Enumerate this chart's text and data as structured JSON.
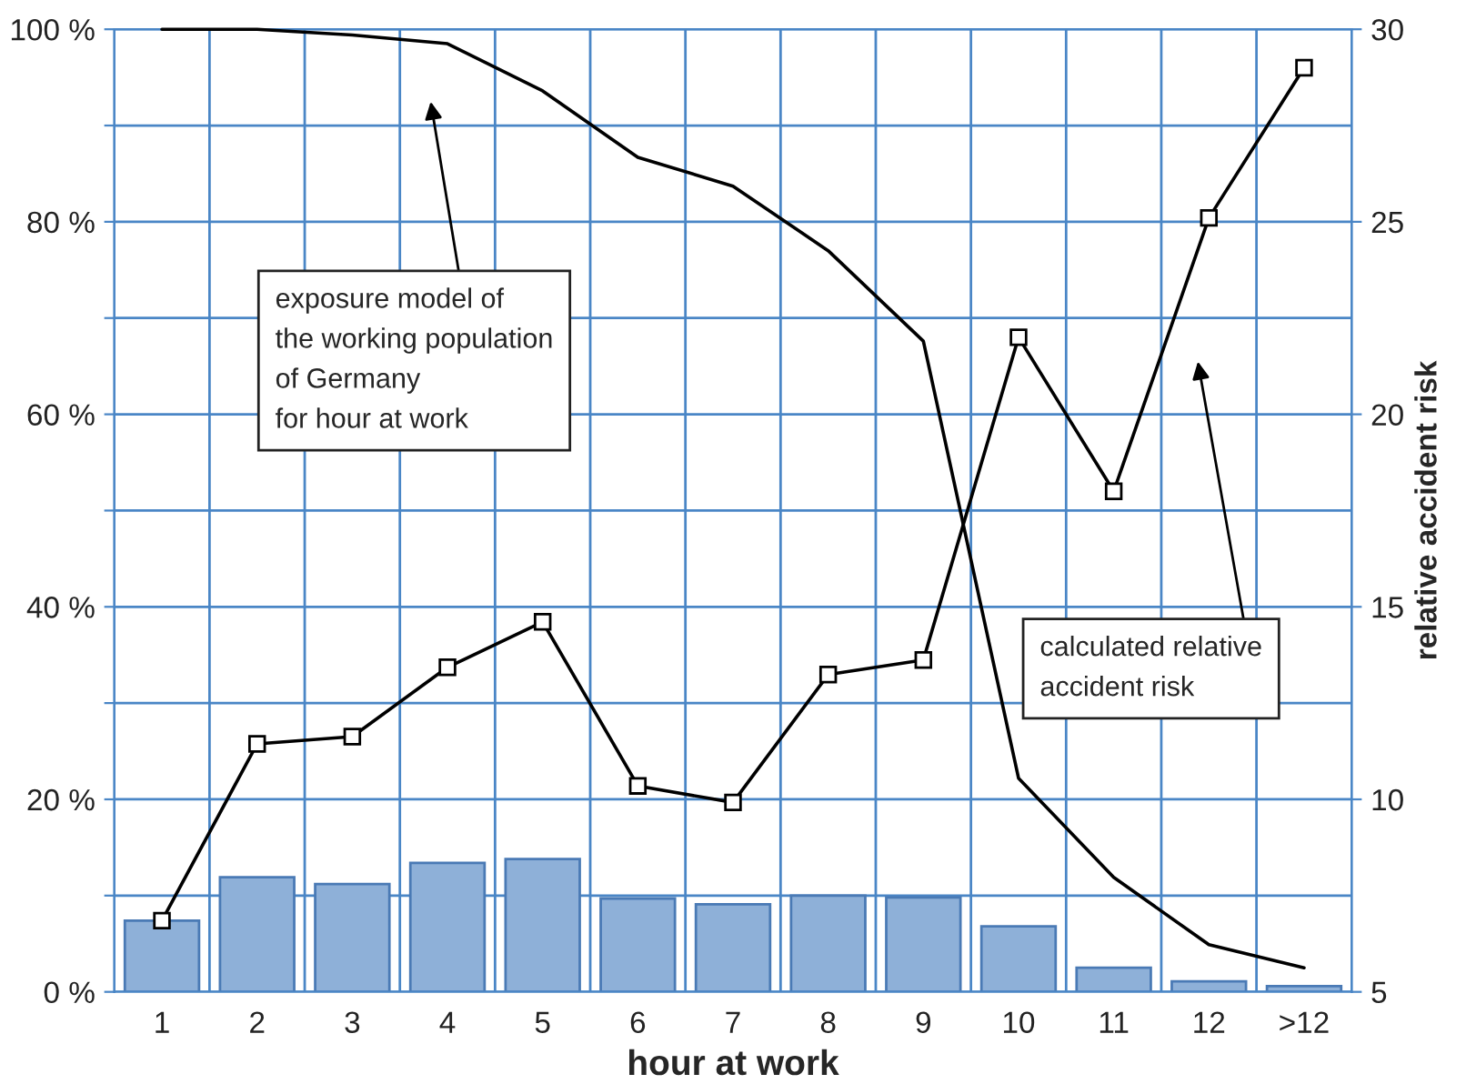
{
  "chart_data": {
    "type": "bar",
    "xlabel": "hour at work",
    "y2label": "relative accident risk",
    "categories": [
      "1",
      "2",
      "3",
      "4",
      "5",
      "6",
      "7",
      "8",
      "9",
      "10",
      "11",
      "12",
      ">12"
    ],
    "series": [
      {
        "color": "#8eb0d8",
        "values": [
          7.4,
          11.9,
          11.2,
          13.4,
          13.8,
          9.7,
          9.1,
          10.0,
          9.8,
          6.8,
          2.5,
          1.1,
          0.6
        ]
      },
      {
        "type": "line",
        "color": "#000000",
        "marker": "none",
        "values": [
          100,
          100,
          99.4,
          98.5,
          93.6,
          86.7,
          83.7,
          77,
          67.6,
          22.2,
          11.9,
          4.9,
          2.5
        ]
      },
      {
        "type": "line",
        "color": "#000000",
        "marker": "square",
        "axis": "y2",
        "values": [
          6.85,
          11.44,
          11.63,
          13.43,
          14.61,
          10.35,
          9.92,
          13.24,
          13.62,
          22.0,
          18.0,
          25.1,
          29.0
        ]
      }
    ],
    "ylim": [
      0,
      100
    ],
    "yticks": [
      {
        "value": 0,
        "label": "0 %"
      },
      {
        "value": 10,
        "label": null
      },
      {
        "value": 20,
        "label": "20 %"
      },
      {
        "value": 30,
        "label": null
      },
      {
        "value": 40,
        "label": "40 %"
      },
      {
        "value": 50,
        "label": null
      },
      {
        "value": 60,
        "label": "60 %"
      },
      {
        "value": 70,
        "label": null
      },
      {
        "value": 80,
        "label": "80 %"
      },
      {
        "value": 90,
        "label": null
      },
      {
        "value": 100,
        "label": "100 %"
      }
    ],
    "y2lim": [
      5,
      30
    ],
    "y2ticks": [
      5,
      10,
      15,
      20,
      25,
      30
    ],
    "grid": true,
    "legend": false,
    "annotations": [
      "exposure model of\nthe working population\nof Germany\nfor hour at work",
      "calculated relative\naccident risk"
    ]
  }
}
